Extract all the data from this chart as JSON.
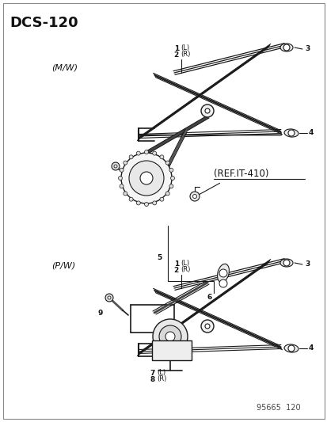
{
  "bg_color": "#ffffff",
  "line_color": "#1a1a1a",
  "text_color": "#111111",
  "title": "DCS-120",
  "footer": "95665  120",
  "top_label": "(M/W)",
  "bottom_label": "(P/W)",
  "ref_text": "(REF.IT-410)"
}
